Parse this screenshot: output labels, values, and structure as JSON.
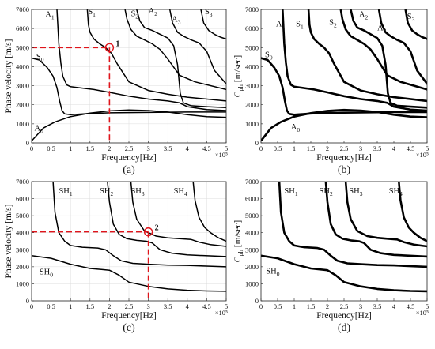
{
  "chart_data": [
    {
      "id": "a",
      "type": "line",
      "panel_label": "(a)",
      "xlabel": "Frequency[Hz]",
      "ylabel": "Phase velocity [m/s]",
      "x_exponent_label": "×10⁵",
      "xlim": [
        0,
        5
      ],
      "ylim": [
        0,
        7000
      ],
      "xticks": [
        "0",
        "0.5",
        "1",
        "1.5",
        "2",
        "2.5",
        "3",
        "3.5",
        "4",
        "4.5",
        "5"
      ],
      "yticks": [
        "0",
        "1000",
        "2000",
        "3000",
        "4000",
        "5000",
        "6000",
        "7000"
      ],
      "grid": true,
      "modes": [
        {
          "label": "A0",
          "x": 0.07,
          "y": 650
        },
        {
          "label": "S0",
          "x": 0.12,
          "y": 4400
        },
        {
          "label": "A1",
          "x": 0.35,
          "y": 6600
        },
        {
          "label": "S1",
          "x": 1.45,
          "y": 6750
        },
        {
          "label": "S2",
          "x": 2.55,
          "y": 6650
        },
        {
          "label": "A2",
          "x": 3.0,
          "y": 6800
        },
        {
          "label": "A3",
          "x": 3.6,
          "y": 6350
        },
        {
          "label": "S3",
          "x": 4.45,
          "y": 6750
        }
      ],
      "marker": {
        "label": "1",
        "x": 2.0,
        "y": 5000
      },
      "series": [
        {
          "x": [
            0.02,
            0.3,
            0.6,
            1.0,
            1.5,
            2.0,
            2.5,
            3.0,
            3.5,
            4.0,
            4.5,
            5.0
          ],
          "y": [
            150,
            780,
            1100,
            1380,
            1560,
            1680,
            1730,
            1700,
            1620,
            1480,
            1380,
            1340
          ]
        },
        {
          "x": [
            0,
            0.2,
            0.4,
            0.55,
            0.65,
            0.72,
            0.78,
            0.85,
            1.0,
            1.5,
            2.0,
            3.0,
            4.0,
            5.0
          ],
          "y": [
            4450,
            4350,
            3950,
            3500,
            2900,
            2200,
            1700,
            1520,
            1480,
            1540,
            1580,
            1600,
            1620,
            1620
          ]
        },
        {
          "x": [
            0.65,
            0.7,
            0.75,
            0.8,
            0.9,
            1.0,
            1.2,
            1.6,
            2.0,
            2.5,
            3.0,
            3.5,
            3.8,
            4.0,
            4.5,
            5.0
          ],
          "y": [
            7000,
            5200,
            4200,
            3500,
            3050,
            2950,
            2900,
            2800,
            2650,
            2450,
            2300,
            2200,
            2100,
            1900,
            1750,
            1700
          ]
        },
        {
          "x": [
            1.43,
            1.46,
            1.5,
            1.6,
            1.75,
            1.9,
            2.05,
            2.2,
            2.5,
            3.0,
            3.5,
            4.0,
            5.0
          ],
          "y": [
            7000,
            6200,
            5800,
            5450,
            5200,
            5000,
            4700,
            4150,
            3200,
            2750,
            2550,
            2400,
            2200
          ]
        },
        {
          "x": [
            2.4,
            2.45,
            2.55,
            2.7,
            2.9,
            3.1,
            3.3,
            3.5,
            3.8,
            4.2,
            5.0
          ],
          "y": [
            7000,
            6500,
            5950,
            5600,
            5400,
            5200,
            4900,
            4400,
            3550,
            3200,
            2800
          ]
        },
        {
          "x": [
            2.7,
            2.78,
            2.9,
            3.1,
            3.3,
            3.5,
            3.65,
            3.75,
            3.82,
            3.9,
            4.1,
            4.5,
            5.0
          ],
          "y": [
            7000,
            6400,
            6050,
            5900,
            5700,
            5500,
            5100,
            4100,
            2600,
            2100,
            1950,
            1900,
            1850
          ]
        },
        {
          "x": [
            3.55,
            3.62,
            3.75,
            3.9,
            4.1,
            4.3,
            4.5,
            4.7,
            5.0
          ],
          "y": [
            7000,
            6300,
            5800,
            5600,
            5400,
            5250,
            4800,
            3800,
            3100
          ]
        },
        {
          "x": [
            4.35,
            4.42,
            4.55,
            4.7,
            4.85,
            5.0
          ],
          "y": [
            7000,
            6300,
            5900,
            5700,
            5550,
            5450
          ]
        }
      ]
    },
    {
      "id": "b",
      "type": "line",
      "panel_label": "(b)",
      "xlabel": "Frequency[Hz]",
      "ylabel": "Cph [m/sec]",
      "x_exponent_label": "×10⁵",
      "xlim": [
        0,
        5
      ],
      "ylim": [
        0,
        7000
      ],
      "xticks": [
        "0",
        "0.5",
        "1",
        "1.5",
        "2",
        "2.5",
        "3",
        "3.5",
        "4",
        "4.5",
        "5"
      ],
      "yticks": [
        "0",
        "1000",
        "2000",
        "3000",
        "4000",
        "5000",
        "6000",
        "7000"
      ],
      "grid": false,
      "modes": [
        {
          "label": "A0",
          "x": 0.9,
          "y": 700
        },
        {
          "label": "S0",
          "x": 0.12,
          "y": 4500
        },
        {
          "label": "A1",
          "x": 0.45,
          "y": 6100
        },
        {
          "label": "S1",
          "x": 1.05,
          "y": 6100
        },
        {
          "label": "S2",
          "x": 2.05,
          "y": 6200
        },
        {
          "label": "A2",
          "x": 2.95,
          "y": 6600
        },
        {
          "label": "A3",
          "x": 3.5,
          "y": 5900
        },
        {
          "label": "S3",
          "x": 4.4,
          "y": 6500
        }
      ],
      "series": [
        {
          "x": [
            0.02,
            0.3,
            0.6,
            1.0,
            1.5,
            2.0,
            2.5,
            3.0,
            3.5,
            4.0,
            4.5,
            5.0
          ],
          "y": [
            150,
            780,
            1100,
            1380,
            1560,
            1680,
            1730,
            1700,
            1620,
            1480,
            1380,
            1340
          ]
        },
        {
          "x": [
            0,
            0.2,
            0.4,
            0.55,
            0.65,
            0.72,
            0.78,
            0.85,
            1.0,
            1.5,
            2.0,
            3.0,
            4.0,
            5.0
          ],
          "y": [
            4450,
            4350,
            3950,
            3500,
            2900,
            2200,
            1700,
            1520,
            1480,
            1540,
            1580,
            1600,
            1620,
            1620
          ]
        },
        {
          "x": [
            0.65,
            0.7,
            0.75,
            0.8,
            0.9,
            1.0,
            1.2,
            1.6,
            2.0,
            2.5,
            3.0,
            3.5,
            3.8,
            4.0,
            4.5,
            5.0
          ],
          "y": [
            7000,
            5200,
            4200,
            3500,
            3050,
            2950,
            2900,
            2800,
            2650,
            2450,
            2300,
            2200,
            2100,
            1900,
            1750,
            1700
          ]
        },
        {
          "x": [
            1.43,
            1.46,
            1.5,
            1.6,
            1.75,
            1.9,
            2.05,
            2.2,
            2.5,
            3.0,
            3.5,
            4.0,
            5.0
          ],
          "y": [
            7000,
            6200,
            5800,
            5450,
            5200,
            5000,
            4700,
            4150,
            3200,
            2750,
            2550,
            2400,
            2200
          ]
        },
        {
          "x": [
            2.4,
            2.45,
            2.55,
            2.7,
            2.9,
            3.1,
            3.3,
            3.5,
            3.8,
            4.2,
            5.0
          ],
          "y": [
            7000,
            6500,
            5950,
            5600,
            5400,
            5200,
            4900,
            4400,
            3550,
            3200,
            2800
          ]
        },
        {
          "x": [
            2.7,
            2.78,
            2.9,
            3.1,
            3.3,
            3.5,
            3.65,
            3.75,
            3.82,
            3.9,
            4.1,
            4.5,
            5.0
          ],
          "y": [
            7000,
            6400,
            6050,
            5900,
            5700,
            5500,
            5100,
            4100,
            2600,
            2100,
            1950,
            1900,
            1850
          ]
        },
        {
          "x": [
            3.55,
            3.62,
            3.75,
            3.9,
            4.1,
            4.3,
            4.5,
            4.7,
            5.0
          ],
          "y": [
            7000,
            6300,
            5800,
            5600,
            5400,
            5250,
            4800,
            3800,
            3100
          ]
        },
        {
          "x": [
            4.35,
            4.42,
            4.55,
            4.7,
            4.85,
            5.0
          ],
          "y": [
            7000,
            6300,
            5900,
            5700,
            5550,
            5450
          ]
        }
      ]
    },
    {
      "id": "c",
      "type": "line",
      "panel_label": "(c)",
      "xlabel": "Frequency[Hz]",
      "ylabel": "Phase velocity [m/s]",
      "x_exponent_label": "×10⁵",
      "xlim": [
        0,
        5
      ],
      "ylim": [
        0,
        7000
      ],
      "xticks": [
        "0",
        "0.5",
        "1",
        "1.5",
        "2",
        "2.5",
        "3",
        "3.5",
        "4",
        "4.5",
        "5"
      ],
      "yticks": [
        "0",
        "1000",
        "2000",
        "3000",
        "4000",
        "5000",
        "6000",
        "7000"
      ],
      "grid": true,
      "modes": [
        {
          "label": "SH0",
          "x": 0.2,
          "y": 1550
        },
        {
          "label": "SH1",
          "x": 0.7,
          "y": 6300
        },
        {
          "label": "SH2",
          "x": 1.75,
          "y": 6300
        },
        {
          "label": "SH3",
          "x": 2.55,
          "y": 6300
        },
        {
          "label": "SH4",
          "x": 3.65,
          "y": 6300
        }
      ],
      "marker": {
        "label": "2",
        "x": 3.0,
        "y": 4050
      },
      "series": [
        {
          "x": [
            0,
            0.5,
            1.0,
            1.5,
            2.0,
            2.25,
            2.5,
            3.0,
            3.5,
            4.0,
            4.5,
            5.0
          ],
          "y": [
            2650,
            2500,
            2150,
            1900,
            1800,
            1500,
            1100,
            850,
            700,
            620,
            580,
            560
          ]
        },
        {
          "x": [
            0.55,
            0.6,
            0.7,
            0.85,
            1.0,
            1.3,
            1.7,
            1.9,
            2.1,
            2.3,
            2.6,
            3.0,
            3.5,
            4.0,
            5.0
          ],
          "y": [
            7000,
            5200,
            4000,
            3500,
            3250,
            3150,
            3100,
            3000,
            2650,
            2350,
            2200,
            2150,
            2100,
            2080,
            2000
          ]
        },
        {
          "x": [
            1.95,
            2.0,
            2.1,
            2.25,
            2.45,
            2.7,
            2.95,
            3.1,
            3.3,
            3.6,
            4.0,
            5.0
          ],
          "y": [
            7000,
            5800,
            4500,
            3900,
            3650,
            3550,
            3500,
            3400,
            3000,
            2800,
            2700,
            2600
          ]
        },
        {
          "x": [
            2.55,
            2.6,
            2.7,
            2.9,
            3.2,
            3.5,
            3.8,
            4.1,
            4.3,
            4.6,
            5.0
          ],
          "y": [
            7000,
            5800,
            4800,
            4100,
            3800,
            3700,
            3650,
            3600,
            3450,
            3300,
            3200
          ]
        },
        {
          "x": [
            4.15,
            4.2,
            4.3,
            4.45,
            4.6,
            4.8,
            5.0
          ],
          "y": [
            7000,
            5900,
            4900,
            4300,
            4000,
            3700,
            3500
          ]
        }
      ]
    },
    {
      "id": "d",
      "type": "line",
      "panel_label": "(d)",
      "xlabel": "Frequency[Hz]",
      "ylabel": "Cph [m/sec]",
      "x_exponent_label": "×10⁵",
      "xlim": [
        0,
        5
      ],
      "ylim": [
        0,
        7000
      ],
      "xticks": [
        "0",
        "0.5",
        "1",
        "1.5",
        "2",
        "2.5",
        "3",
        "3.5",
        "4",
        "4.5",
        "5"
      ],
      "yticks": [
        "0",
        "1000",
        "2000",
        "3000",
        "4000",
        "5000",
        "6000",
        "7000"
      ],
      "grid": false,
      "modes": [
        {
          "label": "SH0",
          "x": 0.15,
          "y": 1600
        },
        {
          "label": "SH1",
          "x": 0.7,
          "y": 6300
        },
        {
          "label": "SH2",
          "x": 1.75,
          "y": 6300
        },
        {
          "label": "SH3",
          "x": 2.65,
          "y": 6300
        },
        {
          "label": "SH4",
          "x": 3.85,
          "y": 6300
        }
      ],
      "series": [
        {
          "x": [
            0,
            0.5,
            1.0,
            1.5,
            2.0,
            2.25,
            2.5,
            3.0,
            3.5,
            4.0,
            4.5,
            5.0
          ],
          "y": [
            2650,
            2500,
            2150,
            1900,
            1800,
            1500,
            1100,
            850,
            700,
            620,
            580,
            560
          ]
        },
        {
          "x": [
            0.55,
            0.6,
            0.7,
            0.85,
            1.0,
            1.3,
            1.7,
            1.9,
            2.1,
            2.3,
            2.6,
            3.0,
            3.5,
            4.0,
            5.0
          ],
          "y": [
            7000,
            5200,
            4000,
            3500,
            3250,
            3150,
            3100,
            3000,
            2650,
            2350,
            2200,
            2150,
            2100,
            2080,
            2000
          ]
        },
        {
          "x": [
            1.95,
            2.0,
            2.1,
            2.25,
            2.45,
            2.7,
            2.95,
            3.1,
            3.3,
            3.6,
            4.0,
            5.0
          ],
          "y": [
            7000,
            5800,
            4500,
            3900,
            3650,
            3550,
            3500,
            3400,
            3000,
            2800,
            2700,
            2600
          ]
        },
        {
          "x": [
            2.55,
            2.6,
            2.7,
            2.9,
            3.2,
            3.5,
            3.8,
            4.1,
            4.3,
            4.6,
            5.0
          ],
          "y": [
            7000,
            5800,
            4800,
            4100,
            3800,
            3700,
            3650,
            3600,
            3450,
            3300,
            3200
          ]
        },
        {
          "x": [
            4.15,
            4.2,
            4.3,
            4.45,
            4.6,
            4.8,
            5.0
          ],
          "y": [
            7000,
            5900,
            4900,
            4300,
            4000,
            3700,
            3500
          ]
        }
      ]
    }
  ]
}
